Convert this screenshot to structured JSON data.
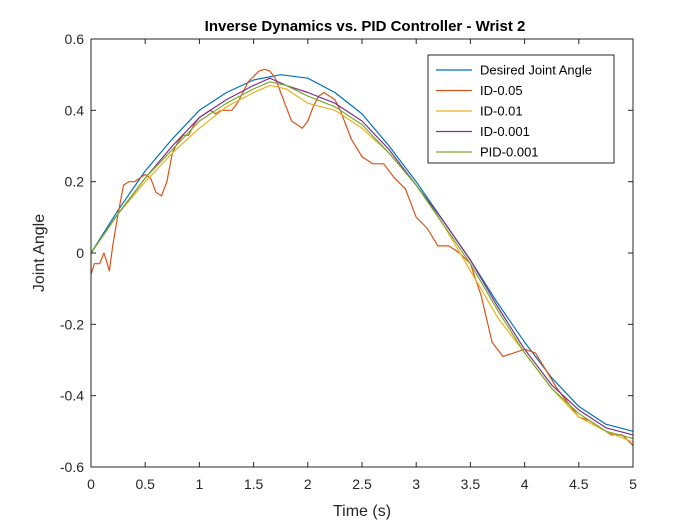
{
  "chart_data": {
    "type": "line",
    "title": "Inverse Dynamics vs. PID Controller - Wrist 2",
    "xlabel": "Time (s)",
    "ylabel": "Joint Angle",
    "xlim": [
      0,
      5
    ],
    "ylim": [
      -0.6,
      0.6
    ],
    "x_ticks": [
      "0",
      "0.5",
      "1",
      "1.5",
      "2",
      "2.5",
      "3",
      "3.5",
      "4",
      "4.5",
      "5"
    ],
    "y_ticks": [
      "-0.6",
      "-0.4",
      "-0.2",
      "0",
      "0.2",
      "0.4",
      "0.6"
    ],
    "grid": false,
    "legend_position": "top-right",
    "series": [
      {
        "name": "Desired Joint Angle",
        "color": "#0072BD",
        "x": [
          0,
          0.25,
          0.5,
          0.75,
          1.0,
          1.25,
          1.5,
          1.75,
          2.0,
          2.25,
          2.5,
          2.75,
          3.0,
          3.25,
          3.5,
          3.75,
          4.0,
          4.25,
          4.5,
          4.75,
          5.0
        ],
        "y": [
          0.0,
          0.12,
          0.23,
          0.32,
          0.4,
          0.45,
          0.485,
          0.5,
          0.49,
          0.45,
          0.39,
          0.3,
          0.2,
          0.09,
          -0.02,
          -0.14,
          -0.25,
          -0.35,
          -0.43,
          -0.48,
          -0.5
        ]
      },
      {
        "name": "ID-0.05",
        "color": "#D95319",
        "x": [
          0,
          0.03,
          0.08,
          0.12,
          0.17,
          0.2,
          0.25,
          0.3,
          0.35,
          0.4,
          0.45,
          0.5,
          0.55,
          0.6,
          0.65,
          0.7,
          0.75,
          0.8,
          0.85,
          0.9,
          0.95,
          1.0,
          1.05,
          1.1,
          1.15,
          1.2,
          1.25,
          1.3,
          1.35,
          1.4,
          1.45,
          1.5,
          1.55,
          1.6,
          1.65,
          1.7,
          1.75,
          1.8,
          1.85,
          1.9,
          1.95,
          2.0,
          2.05,
          2.1,
          2.15,
          2.2,
          2.25,
          2.3,
          2.4,
          2.5,
          2.6,
          2.7,
          2.8,
          2.9,
          3.0,
          3.1,
          3.2,
          3.3,
          3.4,
          3.5,
          3.6,
          3.7,
          3.8,
          3.9,
          4.0,
          4.1,
          4.2,
          4.3,
          4.4,
          4.5,
          4.6,
          4.7,
          4.8,
          4.9,
          5.0
        ],
        "y": [
          -0.06,
          -0.03,
          -0.03,
          0.0,
          -0.05,
          0.02,
          0.11,
          0.19,
          0.2,
          0.2,
          0.21,
          0.22,
          0.21,
          0.17,
          0.16,
          0.2,
          0.28,
          0.31,
          0.33,
          0.33,
          0.36,
          0.38,
          0.39,
          0.4,
          0.39,
          0.4,
          0.4,
          0.4,
          0.42,
          0.45,
          0.48,
          0.495,
          0.51,
          0.515,
          0.51,
          0.49,
          0.45,
          0.41,
          0.37,
          0.36,
          0.35,
          0.37,
          0.41,
          0.44,
          0.45,
          0.44,
          0.43,
          0.4,
          0.32,
          0.27,
          0.25,
          0.25,
          0.21,
          0.18,
          0.1,
          0.07,
          0.02,
          0.02,
          0.0,
          -0.03,
          -0.12,
          -0.25,
          -0.29,
          -0.28,
          -0.27,
          -0.28,
          -0.33,
          -0.38,
          -0.42,
          -0.46,
          -0.47,
          -0.49,
          -0.51,
          -0.51,
          -0.54
        ]
      },
      {
        "name": "ID-0.01",
        "color": "#EDB120",
        "x": [
          0,
          0.25,
          0.5,
          0.75,
          1.0,
          1.25,
          1.5,
          1.65,
          1.8,
          2.0,
          2.25,
          2.5,
          2.75,
          3.0,
          3.25,
          3.5,
          3.75,
          4.0,
          4.25,
          4.5,
          4.75,
          5.0
        ],
        "y": [
          0.0,
          0.11,
          0.2,
          0.28,
          0.35,
          0.41,
          0.45,
          0.47,
          0.46,
          0.42,
          0.4,
          0.35,
          0.28,
          0.19,
          0.08,
          -0.05,
          -0.18,
          -0.28,
          -0.38,
          -0.46,
          -0.5,
          -0.53
        ]
      },
      {
        "name": "ID-0.001",
        "color": "#7E2F8E",
        "x": [
          0,
          0.25,
          0.5,
          0.75,
          1.0,
          1.25,
          1.5,
          1.65,
          1.8,
          2.0,
          2.25,
          2.5,
          2.75,
          3.0,
          3.25,
          3.5,
          3.75,
          4.0,
          4.25,
          4.5,
          4.75,
          5.0
        ],
        "y": [
          0.0,
          0.11,
          0.21,
          0.3,
          0.38,
          0.43,
          0.47,
          0.49,
          0.47,
          0.45,
          0.42,
          0.37,
          0.29,
          0.19,
          0.09,
          -0.02,
          -0.15,
          -0.27,
          -0.37,
          -0.44,
          -0.49,
          -0.51
        ]
      },
      {
        "name": "PID-0.001",
        "color": "#77AC30",
        "x": [
          0,
          0.25,
          0.5,
          0.75,
          1.0,
          1.25,
          1.5,
          1.65,
          1.8,
          2.0,
          2.25,
          2.5,
          2.75,
          3.0,
          3.25,
          3.5,
          3.75,
          4.0,
          4.25,
          4.5,
          4.75,
          5.0
        ],
        "y": [
          0.0,
          0.11,
          0.21,
          0.29,
          0.37,
          0.42,
          0.46,
          0.48,
          0.47,
          0.44,
          0.41,
          0.36,
          0.28,
          0.19,
          0.08,
          -0.03,
          -0.16,
          -0.28,
          -0.38,
          -0.45,
          -0.5,
          -0.52
        ]
      }
    ]
  }
}
